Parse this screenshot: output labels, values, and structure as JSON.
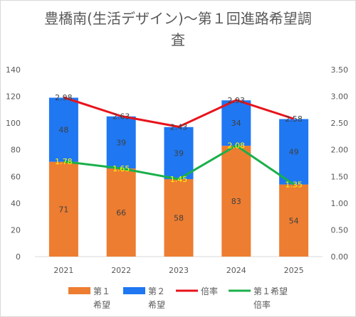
{
  "chart_data": {
    "type": "bar",
    "subtype": "stacked bar with secondary-axis lines",
    "title_line1": "豊橋南(生活デザイン)～第１回進路希望調",
    "title_line2": "査",
    "categories": [
      "2021",
      "2022",
      "2023",
      "2024",
      "2025"
    ],
    "series": [
      {
        "name": "第１希望",
        "kind": "bar",
        "axis": "left",
        "color": "#ED7D31",
        "values": [
          71,
          66,
          58,
          83,
          54
        ]
      },
      {
        "name": "第２希望",
        "kind": "bar",
        "axis": "left",
        "color": "#1F77F2",
        "values": [
          48,
          39,
          39,
          34,
          49
        ]
      },
      {
        "name": "倍率",
        "kind": "line",
        "axis": "right",
        "color": "#E8131B",
        "values": [
          2.98,
          2.63,
          2.43,
          2.93,
          2.58
        ]
      },
      {
        "name": "第１希望倍率",
        "kind": "line",
        "axis": "right",
        "color": "#19B04A",
        "values": [
          1.78,
          1.65,
          1.45,
          2.08,
          1.35
        ]
      }
    ],
    "legend": {
      "position": "bottom",
      "items": [
        {
          "line1": "第１",
          "line2": "希望",
          "color": "#ED7D31",
          "marker": "box"
        },
        {
          "line1": "第２",
          "line2": "希望",
          "color": "#1F77F2",
          "marker": "box"
        },
        {
          "line1": "倍率",
          "line2": "",
          "color": "#E8131B",
          "marker": "line"
        },
        {
          "line1": "第１希望",
          "line2": "倍率",
          "color": "#19B04A",
          "marker": "line"
        }
      ]
    },
    "y_left": {
      "min": 0,
      "max": 140,
      "ticks": [
        "0",
        "20",
        "40",
        "60",
        "80",
        "100",
        "120",
        "140"
      ]
    },
    "y_right": {
      "min": 0,
      "max": 3.5,
      "ticks": [
        "0.00",
        "0.50",
        "1.00",
        "1.50",
        "2.00",
        "2.50",
        "3.00",
        "3.50"
      ]
    },
    "grid": false,
    "labels": {
      "first": [
        "71",
        "66",
        "58",
        "83",
        "54"
      ],
      "second": [
        "48",
        "39",
        "39",
        "34",
        "49"
      ],
      "ratio": [
        "2.98",
        "2.63",
        "2.43",
        "2.93",
        "2.58"
      ],
      "first_ratio": [
        "1.78",
        "1.65",
        "1.45",
        "2.08",
        "1.35"
      ]
    },
    "label_colors": {
      "bar_text": "#404040",
      "first_ratio_text": "#FFFF00"
    }
  }
}
